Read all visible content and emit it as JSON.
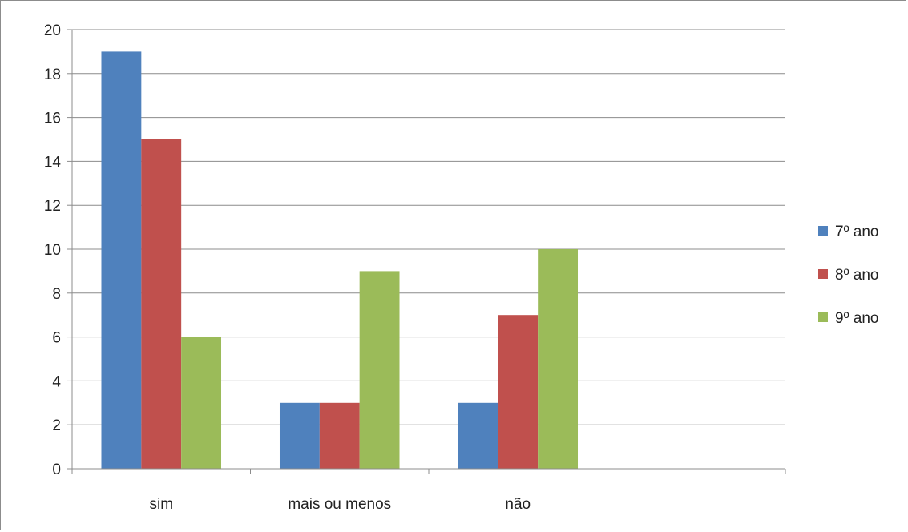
{
  "chart_data": {
    "type": "bar",
    "title": "",
    "xlabel": "",
    "ylabel": "",
    "categories": [
      "sim",
      "mais ou menos",
      "não",
      ""
    ],
    "series": [
      {
        "name": "7º ano",
        "values": [
          19,
          3,
          3,
          null
        ],
        "color": "#4f81bd"
      },
      {
        "name": "8º ano",
        "values": [
          15,
          3,
          7,
          null
        ],
        "color": "#c0504d"
      },
      {
        "name": "9º ano",
        "values": [
          6,
          9,
          10,
          null
        ],
        "color": "#9bbb59"
      }
    ],
    "ylim": [
      0,
      20
    ],
    "yticks": [
      0,
      2,
      4,
      6,
      8,
      10,
      12,
      14,
      16,
      18,
      20
    ],
    "grid": true,
    "legend_position": "right"
  }
}
